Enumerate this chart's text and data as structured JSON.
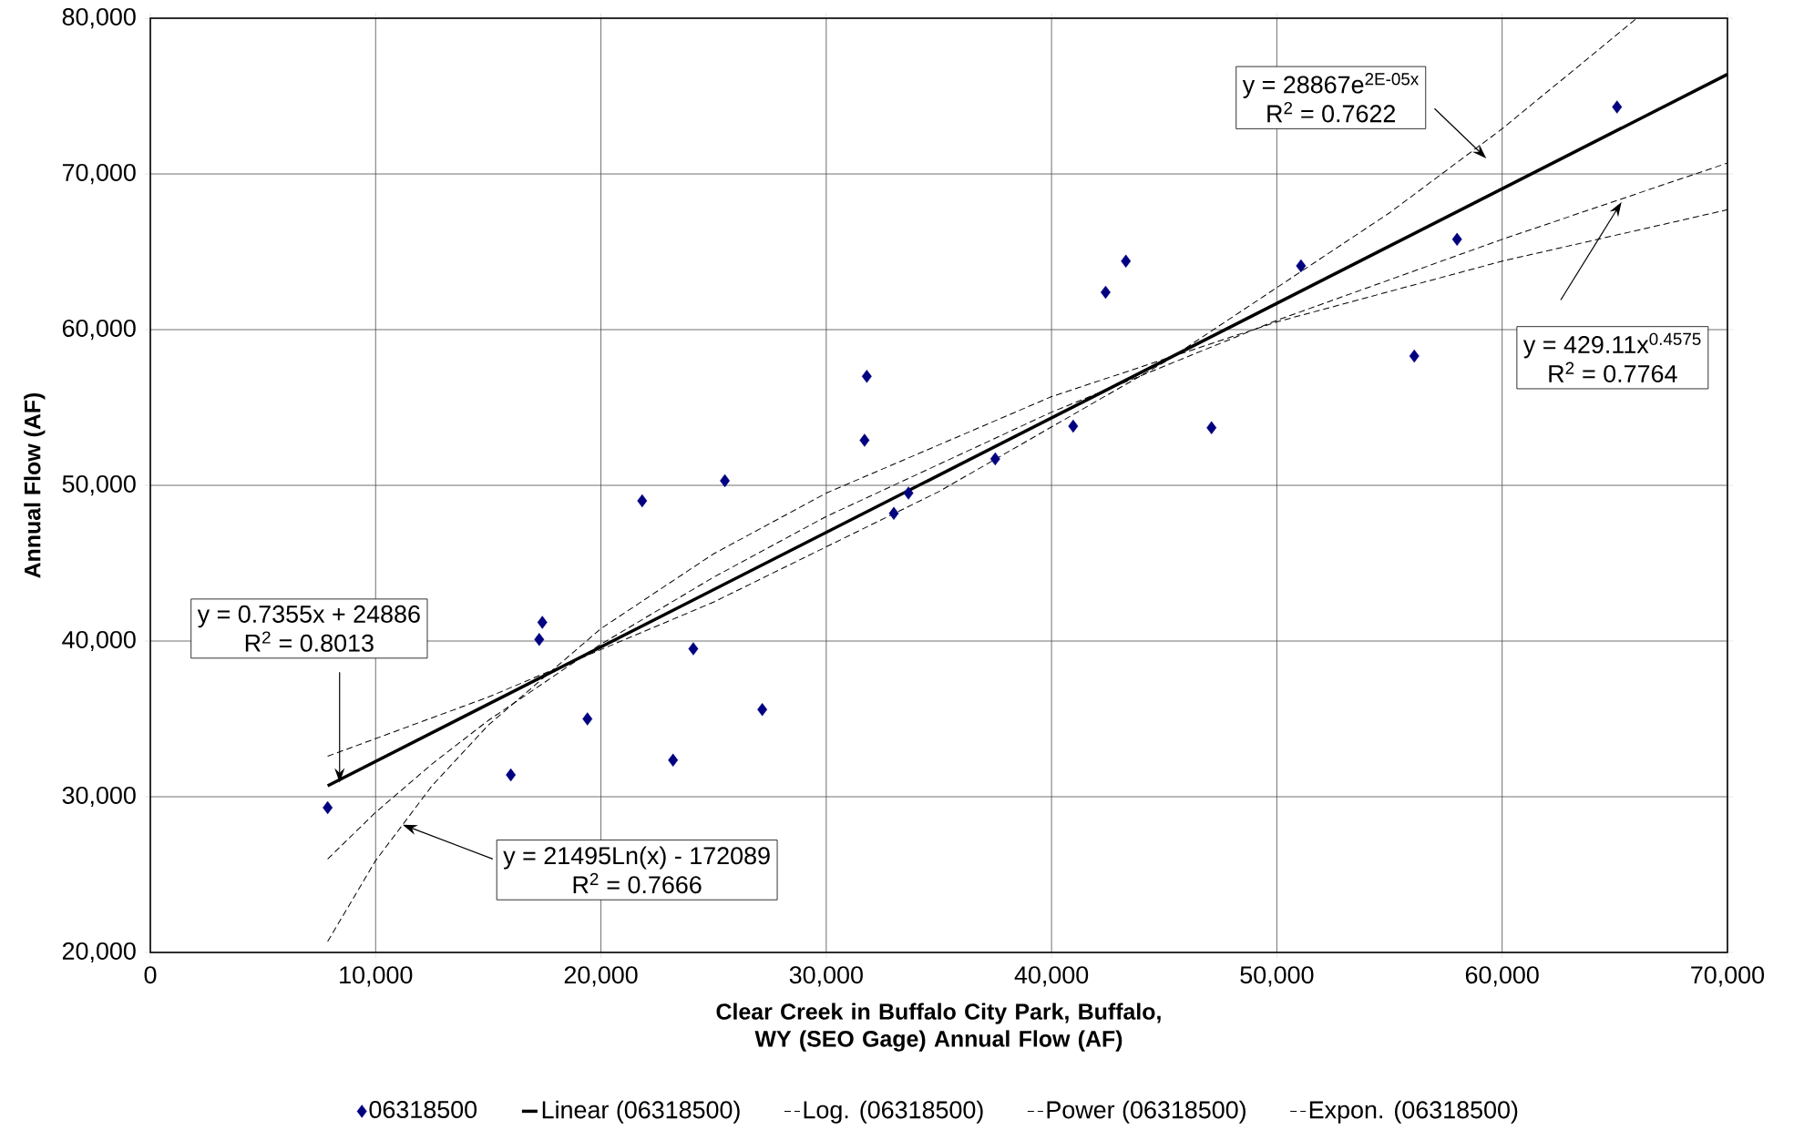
{
  "chart_data": {
    "type": "scatter",
    "xlabel": "Clear Creek in Buffalo City Park, Buffalo, WY (SEO Gage) Annual Flow (AF)",
    "ylabel": "Annual Flow (AF)",
    "xlim": [
      0,
      70000
    ],
    "ylim": [
      20000,
      80000
    ],
    "xticks": [
      0,
      {
        "value": 10000,
        "label": "10,000"
      },
      {
        "value": 20000,
        "label": "20,000"
      },
      {
        "value": 30000,
        "label": "30,000"
      },
      {
        "value": 40000,
        "label": "40,000"
      },
      {
        "value": 50000,
        "label": "50,000"
      },
      {
        "value": 60000,
        "label": "60,000"
      },
      {
        "value": 70000,
        "label": "70,000"
      }
    ],
    "yticks": [
      {
        "value": 20000,
        "label": "20,000"
      },
      {
        "value": 30000,
        "label": "30,000"
      },
      {
        "value": 40000,
        "label": "40,000"
      },
      {
        "value": 50000,
        "label": "50,000"
      },
      {
        "value": 60000,
        "label": "60,000"
      },
      {
        "value": 70000,
        "label": "70,000"
      },
      {
        "value": 80000,
        "label": "80,000"
      }
    ],
    "grid": true,
    "legend": "bottom",
    "marker": "diamond",
    "annotations": [
      "y = 28867e$^{2E-05x}$",
      "R$^{2}$ = 0.7622",
      "y = 429.11x$^{0.4575}$",
      "R$^{2}$ = 0.7764",
      "y = 0.7355x + 24886",
      "R$^{2}$ = 0.8013",
      "y = 21495Ln(x) - 172089",
      "R$^{2}$ = 0.7666"
    ],
    "series": [
      {
        "name": "06318500",
        "color": "#000080",
        "x": [
          7870,
          16000,
          17260,
          17400,
          19400,
          21830,
          23200,
          24100,
          25500,
          27160,
          31700,
          31800,
          33000,
          33650,
          37500,
          40960,
          42400,
          43300,
          47100,
          51070,
          56100,
          58000,
          65100
        ],
        "values": [
          29300,
          31400,
          40100,
          41200,
          35000,
          49000,
          32350,
          39500,
          50300,
          35600,
          52900,
          57000,
          48200,
          49500,
          51700,
          53800,
          62400,
          64400,
          53700,
          64100,
          58300,
          65800,
          74300
        ]
      },
      {
        "name": "Linear (06318500)",
        "type": "line",
        "marker": "none",
        "line_style": "solid",
        "color": "#000000",
        "x": [
          7870,
          70000
        ],
        "values": [
          30700,
          76400
        ]
      },
      {
        "name": "Log. (06318500)",
        "type": "line",
        "marker": "none",
        "line_style": "dashed",
        "color": "#000000",
        "x": [
          7870,
          10000,
          12500,
          15000,
          20000,
          25000,
          30000,
          40000,
          50000,
          60000,
          70000
        ],
        "values": [
          20700,
          25900,
          30700,
          34600,
          40800,
          45600,
          49500,
          55700,
          60500,
          64400,
          67700
        ]
      },
      {
        "name": "Power (06318500)",
        "type": "line",
        "marker": "none",
        "line_style": "dashed",
        "color": "#000000",
        "x": [
          7870,
          10000,
          12500,
          15000,
          20000,
          25000,
          30000,
          40000,
          50000,
          60000,
          70000
        ],
        "values": [
          26000,
          29000,
          32100,
          34900,
          39800,
          44100,
          48000,
          54700,
          60600,
          65800,
          70700
        ]
      },
      {
        "name": "Expon. (06318500)",
        "type": "line",
        "marker": "none",
        "line_style": "dashed",
        "color": "#000000",
        "x": [
          7870,
          15000,
          25000,
          35000,
          45000,
          55000,
          60000,
          65980
        ],
        "values": [
          32600,
          36400,
          42500,
          49600,
          57900,
          67500,
          72900,
          80000
        ]
      }
    ]
  }
}
